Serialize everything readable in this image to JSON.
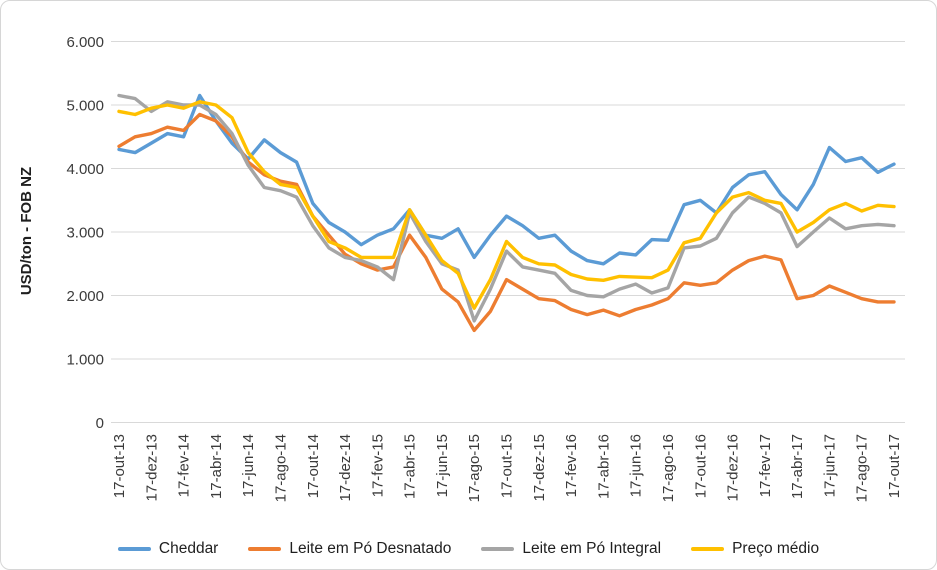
{
  "chart_data": {
    "type": "line",
    "title": "",
    "ylabel": "USD/ton - FOB NZ",
    "ylim": [
      0,
      6000
    ],
    "grid": true,
    "legend_position": "bottom",
    "y_tick_labels": [
      "0",
      "1.000",
      "2.000",
      "3.000",
      "4.000",
      "5.000",
      "6.000"
    ],
    "y_tick_values": [
      0,
      1000,
      2000,
      3000,
      4000,
      5000,
      6000
    ],
    "x_tick_labels": [
      "17-out-13",
      "17-dez-13",
      "17-fev-14",
      "17-abr-14",
      "17-jun-14",
      "17-ago-14",
      "17-out-14",
      "17-dez-14",
      "17-fev-15",
      "17-abr-15",
      "17-jun-15",
      "17-ago-15",
      "17-out-15",
      "17-dez-15",
      "17-fev-16",
      "17-abr-16",
      "17-jun-16",
      "17-ago-16",
      "17-out-16",
      "17-dez-16",
      "17-fev-17",
      "17-abr-17",
      "17-jun-17",
      "17-ago-17",
      "17-out-17"
    ],
    "months": [
      "out-13",
      "nov-13",
      "dez-13",
      "jan-14",
      "fev-14",
      "mar-14",
      "abr-14",
      "mai-14",
      "jun-14",
      "jul-14",
      "ago-14",
      "set-14",
      "out-14",
      "nov-14",
      "dez-14",
      "jan-15",
      "fev-15",
      "mar-15",
      "abr-15",
      "mai-15",
      "jun-15",
      "jul-15",
      "ago-15",
      "set-15",
      "out-15",
      "nov-15",
      "dez-15",
      "jan-16",
      "fev-16",
      "mar-16",
      "abr-16",
      "mai-16",
      "jun-16",
      "jul-16",
      "ago-16",
      "set-16",
      "out-16",
      "nov-16",
      "dez-16",
      "jan-17",
      "fev-17",
      "mar-17",
      "abr-17",
      "mai-17",
      "jun-17",
      "jul-17",
      "ago-17",
      "set-17",
      "out-17"
    ],
    "series": [
      {
        "name": "Cheddar",
        "color": "#5B9BD5",
        "values": [
          4300,
          4250,
          4400,
          4550,
          4500,
          5150,
          4750,
          4400,
          4150,
          4450,
          4250,
          4100,
          3450,
          3150,
          3000,
          2800,
          2950,
          3050,
          3350,
          2950,
          2900,
          3050,
          2600,
          2950,
          3250,
          3100,
          2900,
          2950,
          2700,
          2550,
          2500,
          2670,
          2640,
          2880,
          2870,
          3430,
          3500,
          3300,
          3700,
          3900,
          3950,
          3590,
          3350,
          3750,
          4330,
          4110,
          4170,
          3940,
          4070
        ]
      },
      {
        "name": "Leite em Pó Desnatado",
        "color": "#ED7D31",
        "values": [
          4350,
          4500,
          4550,
          4650,
          4600,
          4850,
          4750,
          4500,
          4100,
          3900,
          3800,
          3750,
          3250,
          2950,
          2650,
          2500,
          2400,
          2450,
          2950,
          2600,
          2100,
          1900,
          1450,
          1750,
          2250,
          2100,
          1950,
          1920,
          1780,
          1700,
          1770,
          1680,
          1780,
          1850,
          1950,
          2200,
          2160,
          2200,
          2400,
          2550,
          2620,
          2560,
          1950,
          2000,
          2150,
          2050,
          1950,
          1900,
          1900
        ]
      },
      {
        "name": "Leite em Pó Integral",
        "color": "#A5A5A5",
        "values": [
          5150,
          5100,
          4900,
          5050,
          5000,
          5000,
          4850,
          4550,
          4050,
          3700,
          3650,
          3550,
          3100,
          2750,
          2600,
          2550,
          2450,
          2250,
          3300,
          2850,
          2500,
          2400,
          1600,
          2100,
          2700,
          2450,
          2400,
          2350,
          2080,
          2000,
          1980,
          2100,
          2180,
          2040,
          2120,
          2750,
          2780,
          2900,
          3300,
          3550,
          3450,
          3300,
          2770,
          3000,
          3220,
          3050,
          3100,
          3120,
          3100
        ]
      },
      {
        "name": "Preço médio",
        "color": "#FFC000",
        "values": [
          4900,
          4850,
          4950,
          5000,
          4950,
          5050,
          5000,
          4800,
          4250,
          3950,
          3750,
          3700,
          3250,
          2850,
          2750,
          2600,
          2600,
          2600,
          3350,
          2950,
          2550,
          2350,
          1800,
          2250,
          2850,
          2600,
          2500,
          2480,
          2330,
          2260,
          2240,
          2300,
          2290,
          2280,
          2400,
          2830,
          2900,
          3300,
          3550,
          3620,
          3500,
          3450,
          3000,
          3150,
          3350,
          3450,
          3330,
          3420,
          3400
        ]
      }
    ]
  }
}
